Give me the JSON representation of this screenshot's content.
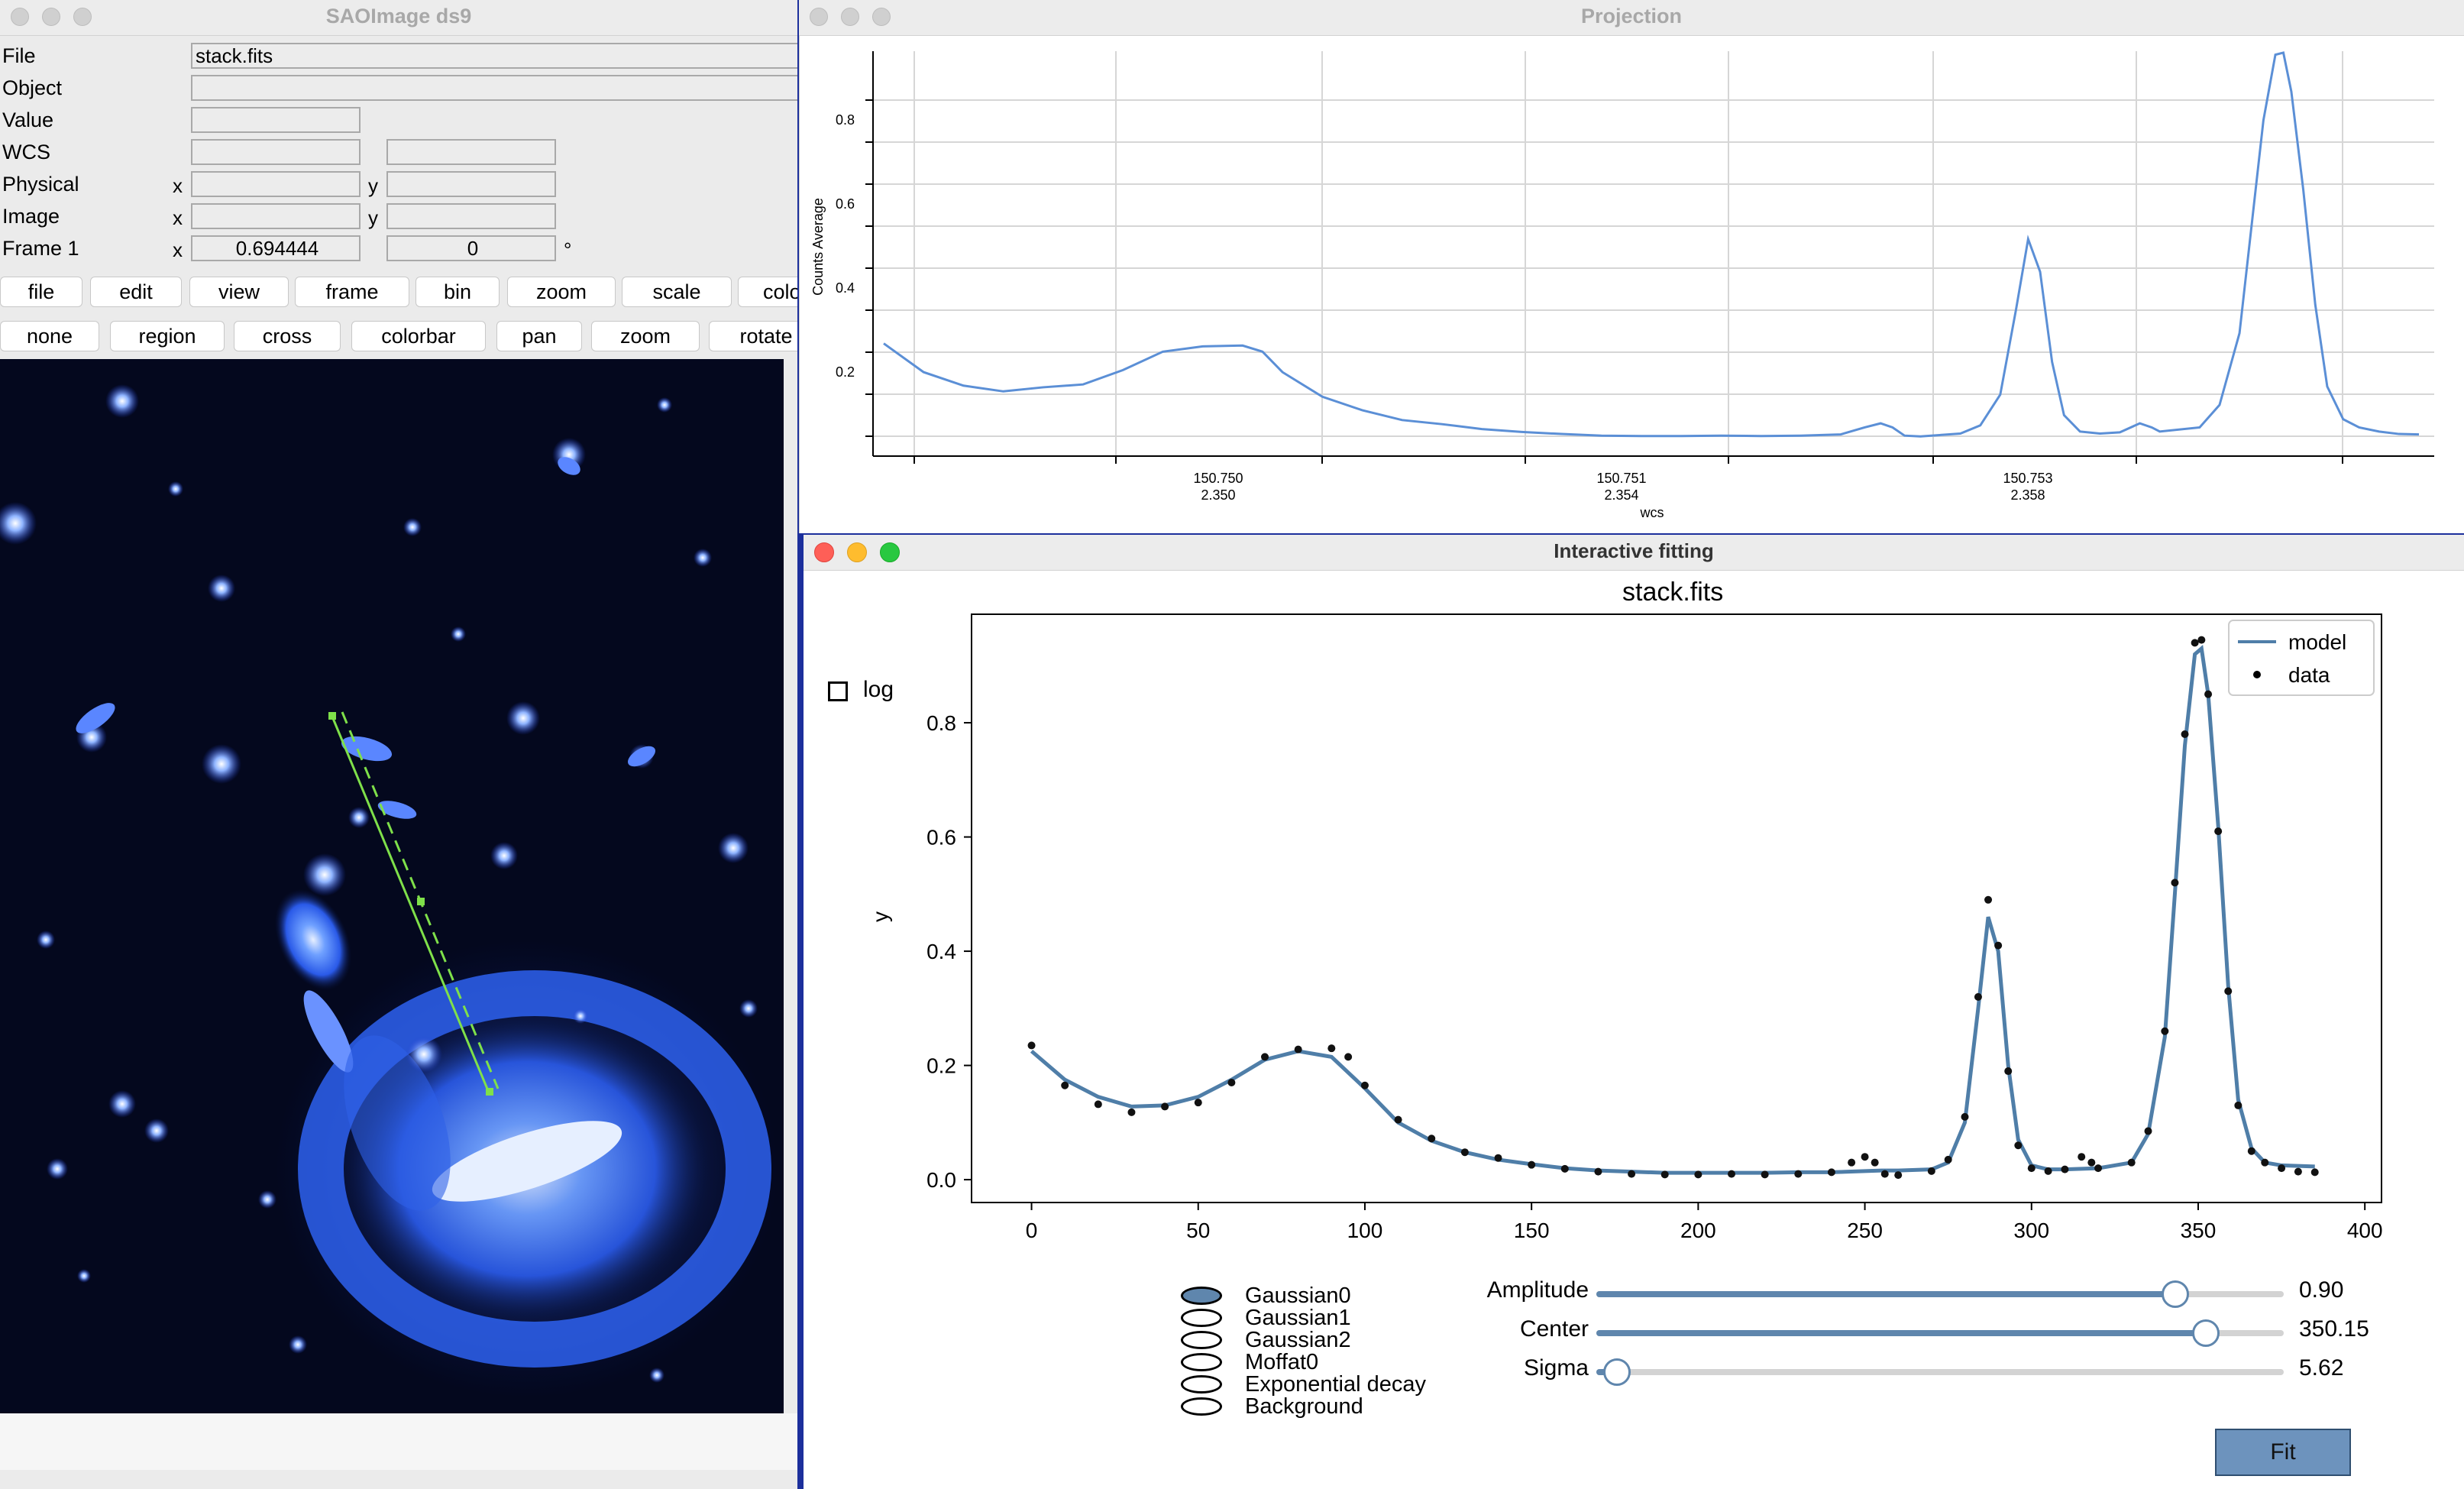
{
  "ds9": {
    "title": "SAOImage ds9",
    "info": {
      "file_label": "File",
      "file_value": "stack.fits",
      "object_label": "Object",
      "value_label": "Value",
      "wcs_label": "WCS",
      "physical_label": "Physical",
      "image_label": "Image",
      "frame_label": "Frame 1",
      "x_label": "x",
      "y_label": "y",
      "frame_x_value": "0.694444",
      "frame_angle_value": "0",
      "degree_symbol": "°"
    },
    "menu_buttons": [
      "file",
      "edit",
      "view",
      "frame",
      "bin",
      "zoom",
      "scale",
      "colo"
    ],
    "mode_buttons": [
      "none",
      "region",
      "cross",
      "colorbar",
      "pan",
      "zoom",
      "rotate"
    ]
  },
  "projection": {
    "title": "Projection",
    "ylabel": "Counts Average",
    "xlabel": "wcs",
    "y_ticks": [
      "0.2",
      "0.4",
      "0.6",
      "0.8"
    ],
    "x_ticks": [
      {
        "top": "150.750",
        "bottom": "2.350"
      },
      {
        "top": "150.751",
        "bottom": "2.354"
      },
      {
        "top": "150.753",
        "bottom": "2.358"
      }
    ]
  },
  "fitting": {
    "title": "Interactive fitting",
    "plot_title": "stack.fits",
    "log_label": "log",
    "ylabel": "y",
    "x_ticks": [
      "0",
      "50",
      "100",
      "150",
      "200",
      "250",
      "300",
      "350",
      "400"
    ],
    "y_ticks": [
      "0.0",
      "0.2",
      "0.4",
      "0.6",
      "0.8"
    ],
    "legend": {
      "model": "model",
      "data": "data"
    },
    "components": [
      "Gaussian0",
      "Gaussian1",
      "Gaussian2",
      "Moffat0",
      "Exponential decay",
      "Background"
    ],
    "selected_component": 0,
    "sliders": [
      {
        "label": "Amplitude",
        "value": "0.90",
        "fraction": 0.842
      },
      {
        "label": "Center",
        "value": "350.15",
        "fraction": 0.887
      },
      {
        "label": "Sigma",
        "value": "5.62",
        "fraction": 0.03
      }
    ],
    "fit_button": "Fit"
  },
  "colors": {
    "model_line": "#4f7ea8",
    "projection_line": "#5b8fd6",
    "selected_fill": "#5f86ad",
    "slider_fill": "#5f86ad",
    "slider_track": "#d3d3d3",
    "fit_button": "#6d93bd",
    "region_line": "#7fe04a"
  },
  "chart_data": {
    "type": "line",
    "title": "stack.fits",
    "xlabel": "",
    "ylabel": "y",
    "xlim": [
      -18,
      405
    ],
    "ylim": [
      -0.04,
      0.99
    ],
    "series": [
      {
        "name": "model",
        "x": [
          0,
          10,
          20,
          30,
          40,
          50,
          60,
          70,
          80,
          90,
          100,
          110,
          120,
          130,
          140,
          150,
          160,
          170,
          180,
          190,
          200,
          210,
          220,
          230,
          240,
          250,
          255,
          260,
          270,
          275,
          280,
          284,
          287,
          290,
          293,
          296,
          300,
          305,
          310,
          320,
          330,
          335,
          340,
          343,
          346,
          349,
          351,
          353,
          356,
          359,
          362,
          366,
          370,
          375,
          380,
          385
        ],
        "y": [
          0.225,
          0.175,
          0.145,
          0.128,
          0.13,
          0.145,
          0.175,
          0.21,
          0.225,
          0.215,
          0.16,
          0.1,
          0.068,
          0.048,
          0.035,
          0.027,
          0.02,
          0.016,
          0.014,
          0.012,
          0.012,
          0.012,
          0.012,
          0.013,
          0.013,
          0.015,
          0.016,
          0.016,
          0.018,
          0.03,
          0.1,
          0.3,
          0.46,
          0.4,
          0.2,
          0.07,
          0.025,
          0.018,
          0.018,
          0.02,
          0.03,
          0.08,
          0.25,
          0.5,
          0.76,
          0.92,
          0.93,
          0.85,
          0.62,
          0.34,
          0.14,
          0.055,
          0.03,
          0.025,
          0.024,
          0.023
        ]
      },
      {
        "name": "data",
        "x": [
          0,
          10,
          20,
          30,
          40,
          50,
          60,
          70,
          80,
          90,
          95,
          100,
          110,
          120,
          130,
          140,
          150,
          160,
          170,
          180,
          190,
          200,
          210,
          220,
          230,
          240,
          246,
          250,
          253,
          256,
          260,
          270,
          275,
          280,
          284,
          287,
          290,
          293,
          296,
          300,
          305,
          310,
          315,
          318,
          320,
          330,
          335,
          340,
          343,
          346,
          349,
          351,
          353,
          356,
          359,
          362,
          366,
          370,
          375,
          380,
          385
        ],
        "y": [
          0.235,
          0.165,
          0.132,
          0.118,
          0.128,
          0.135,
          0.17,
          0.215,
          0.228,
          0.23,
          0.215,
          0.165,
          0.105,
          0.072,
          0.048,
          0.038,
          0.026,
          0.019,
          0.014,
          0.01,
          0.009,
          0.009,
          0.01,
          0.009,
          0.01,
          0.013,
          0.03,
          0.04,
          0.03,
          0.01,
          0.008,
          0.015,
          0.035,
          0.11,
          0.32,
          0.49,
          0.41,
          0.19,
          0.06,
          0.02,
          0.015,
          0.018,
          0.04,
          0.03,
          0.02,
          0.03,
          0.085,
          0.26,
          0.52,
          0.78,
          0.94,
          0.945,
          0.85,
          0.61,
          0.33,
          0.13,
          0.05,
          0.03,
          0.02,
          0.014,
          0.013
        ]
      }
    ],
    "legend": "top-right"
  }
}
